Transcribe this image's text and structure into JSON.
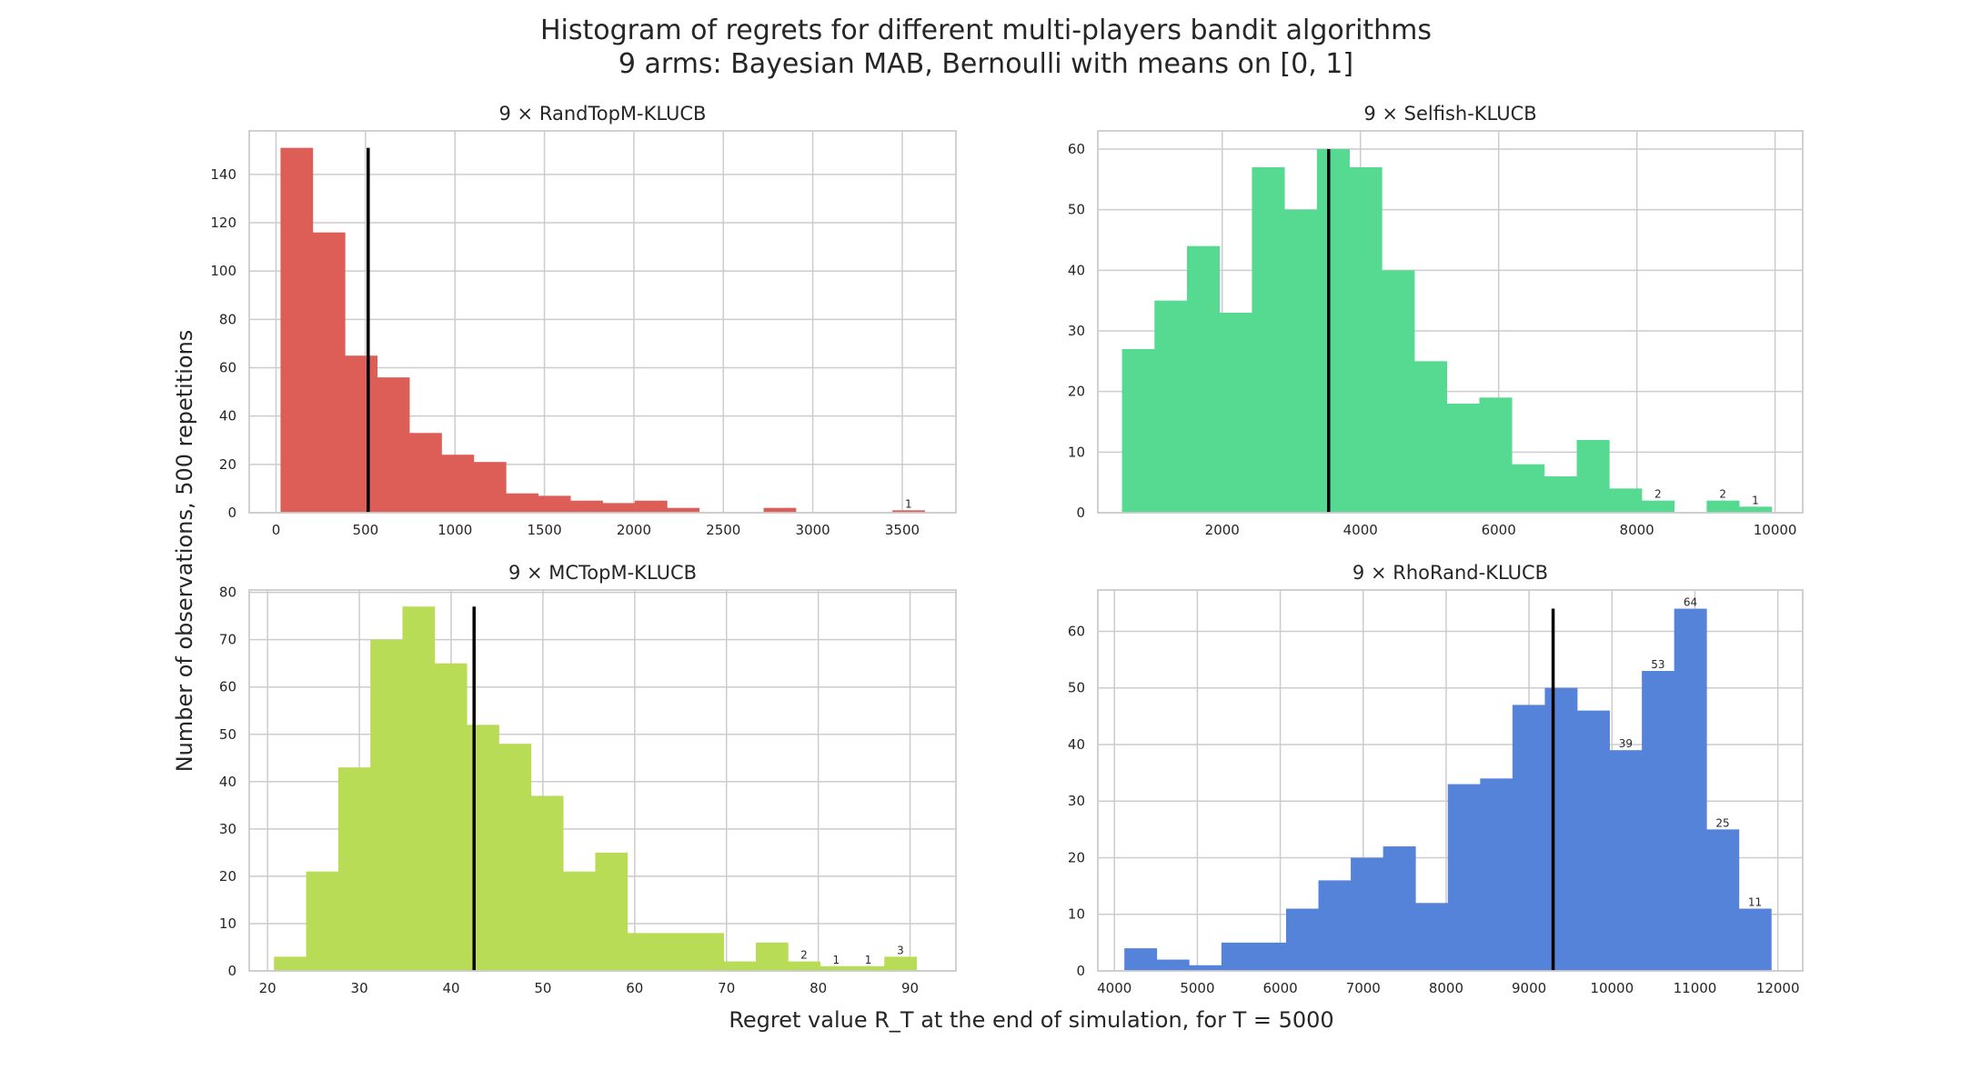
{
  "figure": {
    "title": "Histogram of regrets for different multi-players bandit algorithms",
    "subtitle": "9 arms: Bayesian MAB, Bernoulli with means on [0, 1]",
    "xlabel": "Regret value R_T at the end of simulation, for T = 5000",
    "ylabel": "Number of observations, 500 repetitions"
  },
  "chart_data": [
    {
      "type": "bar",
      "title": "9 × RandTopM-KLUCB",
      "color": "#dc5e56",
      "bin_edges": [
        25,
        205,
        385,
        565,
        745,
        925,
        1105,
        1285,
        1465,
        1645,
        1825,
        2005,
        2185,
        2365,
        2545,
        2725,
        2905,
        3085,
        3265,
        3445,
        3625
      ],
      "values": [
        151,
        116,
        65,
        56,
        33,
        24,
        21,
        8,
        7,
        5,
        4,
        5,
        2,
        0,
        0,
        2,
        0,
        0,
        0,
        1
      ],
      "bar_labels": [
        {
          "bin": 19,
          "text": "1"
        }
      ],
      "mean": 515,
      "xlim": [
        -150,
        3800
      ],
      "ylim": [
        0,
        158
      ],
      "xticks": [
        0,
        500,
        1000,
        1500,
        2000,
        2500,
        3000,
        3500
      ],
      "yticks": [
        0,
        20,
        40,
        60,
        80,
        100,
        120,
        140
      ]
    },
    {
      "type": "bar",
      "title": "9 × Selfish-KLUCB",
      "color": "#56da92",
      "bin_edges": [
        550,
        1020,
        1490,
        1960,
        2430,
        2900,
        3370,
        3840,
        4310,
        4780,
        5250,
        5720,
        6190,
        6660,
        7130,
        7600,
        8070,
        8540,
        9010,
        9480,
        9950
      ],
      "values": [
        27,
        35,
        44,
        33,
        57,
        50,
        60,
        57,
        40,
        25,
        18,
        19,
        8,
        6,
        12,
        4,
        2,
        0,
        2,
        1
      ],
      "bar_labels": [
        {
          "bin": 16,
          "text": "2"
        },
        {
          "bin": 18,
          "text": "2"
        },
        {
          "bin": 19,
          "text": "1"
        }
      ],
      "mean": 3540,
      "xlim": [
        200,
        10400
      ],
      "ylim": [
        0,
        63
      ],
      "xticks": [
        2000,
        4000,
        6000,
        8000,
        10000
      ],
      "yticks": [
        0,
        10,
        20,
        30,
        40,
        50,
        60
      ]
    },
    {
      "type": "bar",
      "title": "9 × MCTopM-KLUCB",
      "color": "#b9dc56",
      "bin_edges": [
        20.7,
        24.2,
        27.7,
        31.2,
        34.7,
        38.2,
        41.7,
        45.2,
        48.7,
        52.2,
        55.7,
        59.2,
        62.7,
        66.2,
        69.7,
        73.2,
        76.7,
        80.2,
        83.7,
        87.2,
        90.7
      ],
      "values": [
        3,
        21,
        43,
        70,
        77,
        65,
        52,
        48,
        37,
        21,
        25,
        8,
        8,
        8,
        2,
        6,
        2,
        1,
        1,
        3
      ],
      "bar_labels": [
        {
          "bin": 16,
          "text": "2"
        },
        {
          "bin": 17,
          "text": "1"
        },
        {
          "bin": 18,
          "text": "1"
        },
        {
          "bin": 19,
          "text": "3"
        }
      ],
      "mean": 42.5,
      "xlim": [
        18,
        95
      ],
      "ylim": [
        0,
        80.5
      ],
      "xticks": [
        20,
        30,
        40,
        50,
        60,
        70,
        80,
        90
      ],
      "yticks": [
        0,
        10,
        20,
        30,
        40,
        50,
        60,
        70,
        80
      ]
    },
    {
      "type": "bar",
      "title": "9 × RhoRand-KLUCB",
      "color": "#5683da",
      "bin_edges": [
        4120,
        4510,
        4900,
        5290,
        5680,
        6070,
        6460,
        6850,
        7240,
        7630,
        8020,
        8410,
        8800,
        9190,
        9580,
        9970,
        10360,
        10750,
        11140,
        11530,
        11920
      ],
      "values": [
        4,
        2,
        1,
        5,
        5,
        11,
        16,
        20,
        22,
        12,
        33,
        34,
        47,
        50,
        46,
        39,
        53,
        64,
        25,
        11
      ],
      "bar_labels": [
        {
          "bin": 15,
          "text": "39"
        },
        {
          "bin": 16,
          "text": "53"
        },
        {
          "bin": 17,
          "text": "64"
        },
        {
          "bin": 18,
          "text": "25"
        },
        {
          "bin": 19,
          "text": "11"
        }
      ],
      "mean": 9290,
      "xlim": [
        3800,
        12300
      ],
      "ylim": [
        0,
        67.3
      ],
      "xticks": [
        4000,
        5000,
        6000,
        7000,
        8000,
        9000,
        10000,
        11000,
        12000
      ],
      "yticks": [
        0,
        10,
        20,
        30,
        40,
        50,
        60
      ]
    }
  ]
}
